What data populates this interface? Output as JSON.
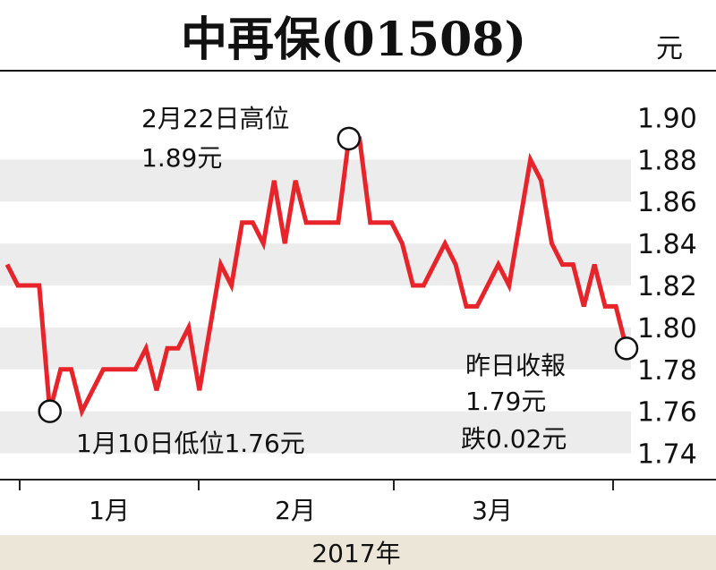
{
  "chart_data": {
    "type": "line",
    "title": "中再保(01508)",
    "unit": "元",
    "year_label": "2017年",
    "month_labels": [
      "1月",
      "2月",
      "3月"
    ],
    "ylim": [
      1.73,
      1.91
    ],
    "yticks": [
      "1.74",
      "1.76",
      "1.78",
      "1.80",
      "1.82",
      "1.84",
      "1.86",
      "1.88",
      "1.90"
    ],
    "grid": "alternating horizontal bands",
    "line_color": "#e8242b",
    "band_color": "#ececec",
    "series": [
      {
        "values": [
          1.83,
          1.82,
          1.82,
          1.82,
          1.76,
          1.78,
          1.78,
          1.76,
          1.77,
          1.78,
          1.78,
          1.78,
          1.78,
          1.79,
          1.77,
          1.79,
          1.79,
          1.8,
          1.77,
          1.8,
          1.83,
          1.82,
          1.85,
          1.85,
          1.84,
          1.87,
          1.84,
          1.87,
          1.85,
          1.85,
          1.85,
          1.85,
          1.89,
          1.89,
          1.85,
          1.85,
          1.85,
          1.84,
          1.82,
          1.82,
          1.83,
          1.84,
          1.83,
          1.81,
          1.81,
          1.82,
          1.83,
          1.82,
          1.85,
          1.88,
          1.87,
          1.84,
          1.83,
          1.83,
          1.81,
          1.83,
          1.81,
          1.81,
          1.79
        ]
      }
    ],
    "annotations": {
      "high": {
        "date": "2月22日高位",
        "value": "1.89元"
      },
      "low": {
        "text": "1月10日低位1.76元"
      },
      "close": {
        "label": "昨日收報",
        "value": "1.79元",
        "change": "跌0.02元"
      }
    }
  }
}
